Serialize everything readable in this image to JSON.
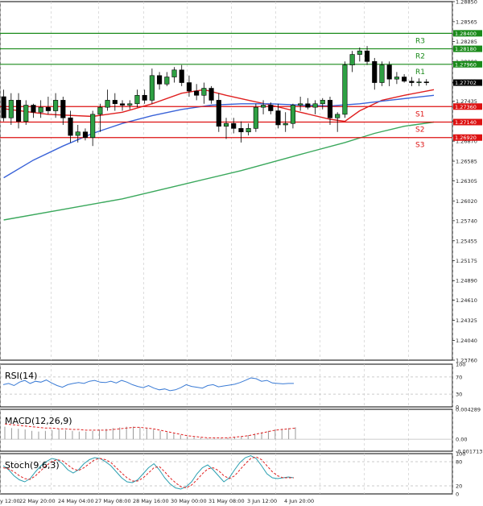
{
  "chart_data": {
    "type": "candlestick",
    "instrument_note": "",
    "price_axis": {
      "ticks": [
        "1.28850",
        "1.28565",
        "1.28285",
        "1.28000",
        "1.27702",
        "1.27435",
        "1.27155",
        "1.26870",
        "1.26585",
        "1.26305",
        "1.26020",
        "1.25740",
        "1.25455",
        "1.25175",
        "1.24890",
        "1.24610",
        "1.24325",
        "1.24040",
        "1.23760"
      ],
      "range": [
        1.2376,
        1.2885
      ]
    },
    "time_axis": {
      "labels": [
        "y 12:00",
        "22 May 20:00",
        "24 May 04:00",
        "27 May 08:00",
        "28 May 16:00",
        "30 May 00:00",
        "31 May 08:00",
        "3 Jun 12:00",
        "4 Jun 20:00"
      ],
      "bar_count": 58
    },
    "levels": [
      {
        "name": "R3",
        "value": 1.284,
        "value_label": "1.28400",
        "color": "#1a8a1a"
      },
      {
        "name": "R2",
        "value": 1.2818,
        "value_label": "1.28180",
        "color": "#1a8a1a"
      },
      {
        "name": "R1",
        "value": 1.2796,
        "value_label": "1.27960",
        "color": "#1a8a1a"
      },
      {
        "name": "S1",
        "value": 1.2736,
        "value_label": "1.27360",
        "color": "#dd1111"
      },
      {
        "name": "S2",
        "value": 1.2714,
        "value_label": "1.27140",
        "color": "#dd1111"
      },
      {
        "name": "S3",
        "value": 1.2692,
        "value_label": "1.26920",
        "color": "#dd1111"
      }
    ],
    "current_price": {
      "value": 1.277,
      "label": "1.27702"
    },
    "candles": [
      [
        1.275,
        1.276,
        1.2715,
        1.272
      ],
      [
        1.272,
        1.2755,
        1.271,
        1.2745
      ],
      [
        1.2745,
        1.2755,
        1.2705,
        1.2715
      ],
      [
        1.2715,
        1.2745,
        1.271,
        1.2738
      ],
      [
        1.2738,
        1.274,
        1.272,
        1.2728
      ],
      [
        1.2728,
        1.2745,
        1.272,
        1.2735
      ],
      [
        1.2735,
        1.275,
        1.2725,
        1.273
      ],
      [
        1.273,
        1.2755,
        1.272,
        1.2745
      ],
      [
        1.2745,
        1.275,
        1.271,
        1.272
      ],
      [
        1.272,
        1.273,
        1.2685,
        1.2695
      ],
      [
        1.2695,
        1.271,
        1.2685,
        1.27
      ],
      [
        1.27,
        1.2705,
        1.2688,
        1.2692
      ],
      [
        1.2692,
        1.273,
        1.268,
        1.2725
      ],
      [
        1.2725,
        1.274,
        1.27,
        1.2735
      ],
      [
        1.2735,
        1.276,
        1.273,
        1.2745
      ],
      [
        1.2745,
        1.2755,
        1.273,
        1.274
      ],
      [
        1.274,
        1.2745,
        1.273,
        1.2738
      ],
      [
        1.2738,
        1.2745,
        1.2732,
        1.274
      ],
      [
        1.274,
        1.276,
        1.2735,
        1.2752
      ],
      [
        1.2752,
        1.276,
        1.274,
        1.2745
      ],
      [
        1.2745,
        1.279,
        1.274,
        1.278
      ],
      [
        1.278,
        1.2785,
        1.276,
        1.2768
      ],
      [
        1.2768,
        1.2785,
        1.2765,
        1.2778
      ],
      [
        1.2778,
        1.2792,
        1.277,
        1.2788
      ],
      [
        1.2788,
        1.2795,
        1.2765,
        1.277
      ],
      [
        1.277,
        1.278,
        1.275,
        1.2758
      ],
      [
        1.2758,
        1.2768,
        1.2745,
        1.2752
      ],
      [
        1.2752,
        1.277,
        1.274,
        1.2762
      ],
      [
        1.2762,
        1.2765,
        1.274,
        1.2745
      ],
      [
        1.2745,
        1.2755,
        1.27,
        1.2708
      ],
      [
        1.2708,
        1.272,
        1.269,
        1.2712
      ],
      [
        1.2712,
        1.272,
        1.2698,
        1.2705
      ],
      [
        1.2705,
        1.2715,
        1.2685,
        1.27
      ],
      [
        1.27,
        1.2712,
        1.2695,
        1.2705
      ],
      [
        1.2705,
        1.274,
        1.27,
        1.2735
      ],
      [
        1.2735,
        1.2745,
        1.2725,
        1.2738
      ],
      [
        1.2738,
        1.2742,
        1.2725,
        1.273
      ],
      [
        1.273,
        1.274,
        1.2705,
        1.271
      ],
      [
        1.271,
        1.2728,
        1.27,
        1.2712
      ],
      [
        1.2712,
        1.274,
        1.2705,
        1.2738
      ],
      [
        1.2738,
        1.275,
        1.273,
        1.274
      ],
      [
        1.274,
        1.2748,
        1.2732,
        1.2735
      ],
      [
        1.2735,
        1.2745,
        1.2725,
        1.274
      ],
      [
        1.274,
        1.2748,
        1.2732,
        1.2745
      ],
      [
        1.2745,
        1.275,
        1.271,
        1.272
      ],
      [
        1.272,
        1.2728,
        1.27,
        1.2725
      ],
      [
        1.2725,
        1.28,
        1.272,
        1.2795
      ],
      [
        1.2795,
        1.2815,
        1.2785,
        1.281
      ],
      [
        1.281,
        1.282,
        1.28,
        1.2815
      ],
      [
        1.2815,
        1.2822,
        1.2795,
        1.28
      ],
      [
        1.28,
        1.2805,
        1.276,
        1.277
      ],
      [
        1.277,
        1.28,
        1.2765,
        1.2795
      ],
      [
        1.2795,
        1.28,
        1.2765,
        1.2775
      ],
      [
        1.2775,
        1.2785,
        1.2768,
        1.2778
      ],
      [
        1.2778,
        1.2782,
        1.277,
        1.2772
      ],
      [
        1.2772,
        1.2778,
        1.2765,
        1.277
      ],
      [
        1.277,
        1.2776,
        1.2765,
        1.2771
      ],
      [
        1.2771,
        1.2775,
        1.2766,
        1.277
      ]
    ],
    "moving_averages": [
      {
        "name": "",
        "color": "#e02020",
        "points": [
          [
            0,
            1.2733
          ],
          [
            6,
            1.2725
          ],
          [
            12,
            1.2722
          ],
          [
            16,
            1.2728
          ],
          [
            20,
            1.274
          ],
          [
            24,
            1.2755
          ],
          [
            27,
            1.276
          ],
          [
            30,
            1.2752
          ],
          [
            33,
            1.2745
          ],
          [
            36,
            1.2738
          ],
          [
            40,
            1.2728
          ],
          [
            44,
            1.2718
          ],
          [
            46,
            1.2715
          ],
          [
            48,
            1.273
          ],
          [
            51,
            1.2745
          ],
          [
            54,
            1.2752
          ],
          [
            58,
            1.276
          ]
        ]
      },
      {
        "name": "",
        "color": "#3a63d8",
        "points": [
          [
            0,
            1.2635
          ],
          [
            4,
            1.266
          ],
          [
            8,
            1.268
          ],
          [
            12,
            1.2698
          ],
          [
            16,
            1.2712
          ],
          [
            20,
            1.2723
          ],
          [
            24,
            1.2732
          ],
          [
            28,
            1.2738
          ],
          [
            32,
            1.274
          ],
          [
            36,
            1.274
          ],
          [
            40,
            1.2738
          ],
          [
            44,
            1.2737
          ],
          [
            48,
            1.274
          ],
          [
            52,
            1.2745
          ],
          [
            58,
            1.2752
          ]
        ]
      },
      {
        "name": "",
        "color": "#3aa85c",
        "points": [
          [
            0,
            1.2575
          ],
          [
            8,
            1.259
          ],
          [
            16,
            1.2605
          ],
          [
            24,
            1.2625
          ],
          [
            32,
            1.2645
          ],
          [
            40,
            1.2668
          ],
          [
            46,
            1.2685
          ],
          [
            50,
            1.2698
          ],
          [
            54,
            1.2708
          ],
          [
            58,
            1.2714
          ]
        ]
      }
    ],
    "indicators": [
      {
        "name": "RSI(14)",
        "ticks": [
          "100",
          "70",
          "30",
          "0"
        ],
        "range": [
          0,
          100
        ],
        "values": [
          52,
          55,
          50,
          58,
          62,
          55,
          60,
          58,
          63,
          56,
          50,
          46,
          52,
          55,
          57,
          55,
          60,
          62,
          58,
          57,
          60,
          56,
          62,
          58,
          52,
          48,
          45,
          50,
          44,
          40,
          42,
          38,
          40,
          45,
          52,
          48,
          46,
          44,
          50,
          52,
          47,
          49,
          51,
          53,
          57,
          62,
          68,
          66,
          60,
          62,
          56,
          55,
          54,
          55,
          55
        ]
      },
      {
        "name": "MACD(12,26,9)",
        "ticks": [
          "0.004289",
          "0.00",
          "-0.001713"
        ],
        "range": [
          -0.001713,
          0.004289
        ],
        "histogram": [
          0.0018,
          0.0016,
          0.0015,
          0.0014,
          0.0012,
          0.0011,
          0.0012,
          0.0013,
          0.0014,
          0.0013,
          0.0012,
          0.0011,
          0.0011,
          0.0012,
          0.0014,
          0.0015,
          0.0016,
          0.0017,
          0.0018,
          0.0018,
          0.0017,
          0.0016,
          0.0014,
          0.0012,
          0.001,
          0.0008,
          0.0006,
          0.0004,
          0.0003,
          0.0002,
          0.0001,
          0.0001,
          0.0001,
          0.0002,
          0.0003,
          0.0004,
          0.0006,
          0.0008,
          0.001,
          0.0012,
          0.0014,
          0.0015,
          0.0016,
          0.0017
        ],
        "signal": [
          0.0022,
          0.0021,
          0.002,
          0.0019,
          0.0018,
          0.0017,
          0.0016,
          0.0016,
          0.0015,
          0.0015,
          0.0014,
          0.0014,
          0.0013,
          0.0013,
          0.0013,
          0.0013,
          0.0014,
          0.0015,
          0.0016,
          0.0017,
          0.0017,
          0.0016,
          0.0015,
          0.0013,
          0.0011,
          0.0009,
          0.0007,
          0.0005,
          0.0004,
          0.0003,
          0.0002,
          0.0002,
          0.0002,
          0.0002,
          0.0003,
          0.0004,
          0.0005,
          0.0007,
          0.0009,
          0.0011,
          0.0013,
          0.0014,
          0.0015,
          0.0016
        ]
      },
      {
        "name": "Stoch(9,6,3)",
        "ticks": [
          "100",
          "80",
          "20",
          "0"
        ],
        "range": [
          0,
          100
        ],
        "k": [
          70,
          60,
          45,
          35,
          30,
          38,
          55,
          70,
          80,
          88,
          85,
          75,
          60,
          52,
          60,
          75,
          85,
          90,
          88,
          80,
          70,
          55,
          40,
          30,
          28,
          35,
          50,
          65,
          75,
          60,
          40,
          25,
          15,
          12,
          18,
          30,
          50,
          65,
          72,
          60,
          45,
          30,
          40,
          60,
          78,
          90,
          95,
          88,
          70,
          50,
          40,
          38,
          40,
          42,
          40
        ],
        "d": [
          65,
          62,
          55,
          45,
          38,
          36,
          45,
          58,
          70,
          80,
          85,
          82,
          72,
          62,
          58,
          65,
          75,
          85,
          88,
          85,
          78,
          65,
          52,
          40,
          32,
          32,
          40,
          52,
          65,
          68,
          55,
          40,
          28,
          18,
          15,
          22,
          35,
          50,
          62,
          65,
          58,
          45,
          38,
          45,
          60,
          75,
          88,
          92,
          85,
          70,
          55,
          45,
          40,
          40,
          40
        ]
      }
    ]
  }
}
